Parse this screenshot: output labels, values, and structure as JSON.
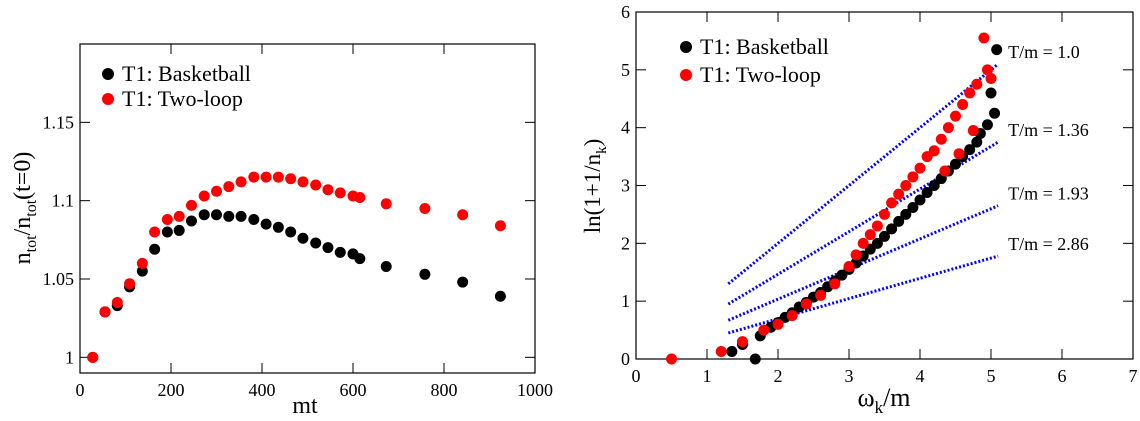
{
  "chart_data": [
    {
      "type": "scatter",
      "xlabel": "mt",
      "ylabel": {
        "base": "n",
        "sub": "tot",
        "slash": "/n",
        "sub2": "tot",
        "tail": "(t=0)"
      },
      "xlim": [
        0,
        1000
      ],
      "ylim": [
        0.99,
        1.2
      ],
      "xticks": [
        {
          "value": 0,
          "label": "0"
        },
        {
          "value": 200,
          "label": "200"
        },
        {
          "value": 400,
          "label": "400"
        },
        {
          "value": 600,
          "label": "600"
        },
        {
          "value": 800,
          "label": "800"
        },
        {
          "value": 1000,
          "label": "1000"
        }
      ],
      "yticks": [
        {
          "value": 1.0,
          "label": "1"
        },
        {
          "value": 1.05,
          "label": "1.05"
        },
        {
          "value": 1.1,
          "label": "1.1"
        },
        {
          "value": 1.15,
          "label": "1.15"
        }
      ],
      "legend_position": "top-left",
      "series": [
        {
          "name": "T1: Basketball",
          "color": "#000000",
          "points": [
            [
              28,
              1.0
            ],
            [
              55,
              1.029
            ],
            [
              82,
              1.033
            ],
            [
              109,
              1.045
            ],
            [
              137,
              1.055
            ],
            [
              164,
              1.069
            ],
            [
              192,
              1.08
            ],
            [
              218,
              1.081
            ],
            [
              245,
              1.087
            ],
            [
              273,
              1.091
            ],
            [
              300,
              1.091
            ],
            [
              327,
              1.09
            ],
            [
              354,
              1.09
            ],
            [
              382,
              1.088
            ],
            [
              409,
              1.085
            ],
            [
              436,
              1.083
            ],
            [
              463,
              1.08
            ],
            [
              490,
              1.076
            ],
            [
              518,
              1.073
            ],
            [
              545,
              1.07
            ],
            [
              572,
              1.067
            ],
            [
              600,
              1.066
            ],
            [
              615,
              1.063
            ],
            [
              673,
              1.058
            ],
            [
              758,
              1.053
            ],
            [
              841,
              1.048
            ],
            [
              924,
              1.039
            ]
          ]
        },
        {
          "name": "T1: Two-loop",
          "color": "#ff0000",
          "points": [
            [
              28,
              1.0
            ],
            [
              55,
              1.029
            ],
            [
              82,
              1.035
            ],
            [
              109,
              1.047
            ],
            [
              137,
              1.06
            ],
            [
              164,
              1.08
            ],
            [
              192,
              1.088
            ],
            [
              218,
              1.09
            ],
            [
              245,
              1.097
            ],
            [
              273,
              1.103
            ],
            [
              300,
              1.106
            ],
            [
              327,
              1.109
            ],
            [
              354,
              1.112
            ],
            [
              382,
              1.115
            ],
            [
              409,
              1.115
            ],
            [
              436,
              1.115
            ],
            [
              463,
              1.114
            ],
            [
              490,
              1.112
            ],
            [
              518,
              1.11
            ],
            [
              545,
              1.107
            ],
            [
              572,
              1.105
            ],
            [
              600,
              1.103
            ],
            [
              615,
              1.102
            ],
            [
              673,
              1.098
            ],
            [
              758,
              1.095
            ],
            [
              841,
              1.091
            ],
            [
              924,
              1.084
            ]
          ]
        }
      ]
    },
    {
      "type": "scatter",
      "xlabel": {
        "base": "ω",
        "sub": "k",
        "tail": "/m"
      },
      "ylabel": {
        "base": "ln(1+1/n",
        "sub": "k",
        "tail": ")"
      },
      "xlim": [
        0,
        7
      ],
      "ylim": [
        0,
        6
      ],
      "xticks": [
        {
          "value": 0,
          "label": "0"
        },
        {
          "value": 1,
          "label": "1"
        },
        {
          "value": 2,
          "label": "2"
        },
        {
          "value": 3,
          "label": "3"
        },
        {
          "value": 4,
          "label": "4"
        },
        {
          "value": 5,
          "label": "5"
        },
        {
          "value": 6,
          "label": "6"
        },
        {
          "value": 7,
          "label": "7"
        }
      ],
      "yticks": [
        {
          "value": 0,
          "label": "0"
        },
        {
          "value": 1,
          "label": "1"
        },
        {
          "value": 2,
          "label": "2"
        },
        {
          "value": 3,
          "label": "3"
        },
        {
          "value": 4,
          "label": "4"
        },
        {
          "value": 5,
          "label": "5"
        },
        {
          "value": 6,
          "label": "6"
        }
      ],
      "legend_position": "top-left",
      "series": [
        {
          "name": "T1: Basketball",
          "color": "#000000",
          "points": [
            [
              1.35,
              0.13
            ],
            [
              1.5,
              0.25
            ],
            [
              1.68,
              0.0
            ],
            [
              1.75,
              0.4
            ],
            [
              1.9,
              0.55
            ],
            [
              2.0,
              0.63
            ],
            [
              2.1,
              0.72
            ],
            [
              2.2,
              0.8
            ],
            [
              2.3,
              0.9
            ],
            [
              2.4,
              0.98
            ],
            [
              2.5,
              1.07
            ],
            [
              2.6,
              1.15
            ],
            [
              2.7,
              1.25
            ],
            [
              2.8,
              1.35
            ],
            [
              2.9,
              1.45
            ],
            [
              3.0,
              1.55
            ],
            [
              3.1,
              1.66
            ],
            [
              3.2,
              1.78
            ],
            [
              3.3,
              1.9
            ],
            [
              3.4,
              2.0
            ],
            [
              3.5,
              2.12
            ],
            [
              3.6,
              2.25
            ],
            [
              3.7,
              2.38
            ],
            [
              3.8,
              2.5
            ],
            [
              3.9,
              2.62
            ],
            [
              4.0,
              2.75
            ],
            [
              4.1,
              2.88
            ],
            [
              4.2,
              3.0
            ],
            [
              4.3,
              3.12
            ],
            [
              4.4,
              3.25
            ],
            [
              4.5,
              3.37
            ],
            [
              4.6,
              3.5
            ],
            [
              4.7,
              3.62
            ],
            [
              4.8,
              3.75
            ],
            [
              4.85,
              3.9
            ],
            [
              4.95,
              4.05
            ],
            [
              5.05,
              4.25
            ],
            [
              5.0,
              4.6
            ],
            [
              5.08,
              5.35
            ]
          ]
        },
        {
          "name": "T1: Two-loop",
          "color": "#ff0000",
          "points": [
            [
              0.5,
              0.0
            ],
            [
              1.2,
              0.13
            ],
            [
              1.5,
              0.3
            ],
            [
              1.8,
              0.5
            ],
            [
              2.0,
              0.6
            ],
            [
              2.2,
              0.75
            ],
            [
              2.4,
              0.95
            ],
            [
              2.6,
              1.1
            ],
            [
              2.8,
              1.3
            ],
            [
              3.0,
              1.6
            ],
            [
              3.1,
              1.8
            ],
            [
              3.2,
              2.0
            ],
            [
              3.3,
              2.15
            ],
            [
              3.4,
              2.3
            ],
            [
              3.5,
              2.5
            ],
            [
              3.6,
              2.7
            ],
            [
              3.7,
              2.85
            ],
            [
              3.8,
              3.0
            ],
            [
              3.9,
              3.15
            ],
            [
              4.0,
              3.3
            ],
            [
              4.1,
              3.5
            ],
            [
              4.2,
              3.6
            ],
            [
              4.3,
              3.8
            ],
            [
              4.4,
              4.0
            ],
            [
              4.5,
              4.2
            ],
            [
              4.6,
              4.4
            ],
            [
              4.7,
              4.6
            ],
            [
              4.8,
              4.75
            ],
            [
              4.9,
              5.55
            ],
            [
              4.95,
              5.0
            ],
            [
              5.0,
              4.85
            ],
            [
              4.35,
              3.25
            ],
            [
              4.55,
              3.55
            ],
            [
              4.75,
              3.95
            ]
          ]
        }
      ],
      "reference_lines": [
        {
          "label": "T/m = 1.0",
          "x0": 1.3,
          "y0": 1.3,
          "x1": 5.1,
          "y1": 5.1,
          "color": "#0000ff"
        },
        {
          "label": "T/m = 1.36",
          "x0": 1.3,
          "y0": 0.95,
          "x1": 5.1,
          "y1": 3.75,
          "color": "#0000ff"
        },
        {
          "label": "T/m = 1.93",
          "x0": 1.3,
          "y0": 0.67,
          "x1": 5.1,
          "y1": 2.65,
          "color": "#0000ff"
        },
        {
          "label": "T/m = 2.86",
          "x0": 1.3,
          "y0": 0.45,
          "x1": 5.1,
          "y1": 1.78,
          "color": "#0000ff"
        }
      ]
    }
  ]
}
